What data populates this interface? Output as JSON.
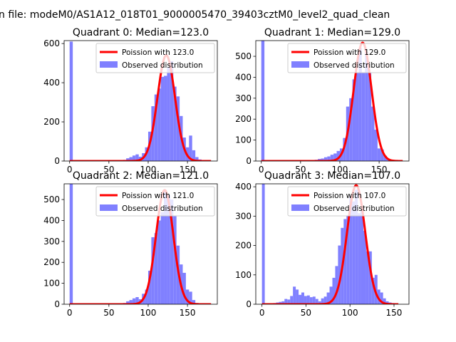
{
  "figure": {
    "suptitle": "n file: modeM0/AS1A12_018T01_9000005470_39403cztM0_level2_quad_clean"
  },
  "chart_data": [
    {
      "type": "bar",
      "title": "Quadrant 0: Median=123.0",
      "median": 123.0,
      "xlim": [
        -7,
        188
      ],
      "ylim": [
        0,
        615
      ],
      "xticks": [
        0,
        50,
        100,
        150
      ],
      "yticks": [
        0,
        200,
        400,
        600
      ],
      "legend": {
        "placement": "top-right",
        "line_label": "Poission with 123.0",
        "bar_label": "Observed distribution"
      },
      "bin_width": 4,
      "series": [
        {
          "name": "Observed distribution",
          "bins": [
            [
              0,
              4,
              610
            ],
            [
              52,
              56,
              2
            ],
            [
              56,
              60,
              2
            ],
            [
              60,
              64,
              2
            ],
            [
              64,
              68,
              4
            ],
            [
              68,
              72,
              6
            ],
            [
              72,
              76,
              14
            ],
            [
              76,
              80,
              20
            ],
            [
              80,
              84,
              28
            ],
            [
              84,
              88,
              34
            ],
            [
              88,
              92,
              22
            ],
            [
              92,
              96,
              40
            ],
            [
              96,
              100,
              70
            ],
            [
              100,
              104,
              150
            ],
            [
              104,
              108,
              280
            ],
            [
              108,
              112,
              340
            ],
            [
              112,
              116,
              370
            ],
            [
              116,
              120,
              430
            ],
            [
              120,
              124,
              435
            ],
            [
              124,
              128,
              480
            ],
            [
              128,
              132,
              510
            ],
            [
              132,
              136,
              380
            ],
            [
              136,
              140,
              330
            ],
            [
              140,
              144,
              230
            ],
            [
              144,
              148,
              120
            ],
            [
              148,
              152,
              70
            ],
            [
              152,
              156,
              130
            ],
            [
              156,
              160,
              55
            ],
            [
              160,
              164,
              20
            ],
            [
              164,
              168,
              8
            ],
            [
              168,
              172,
              4
            ],
            [
              172,
              176,
              2
            ]
          ]
        },
        {
          "name": "Poission with 123.0",
          "kind": "poisson",
          "mean": 123.0,
          "scale": 540,
          "x_range": [
            0,
            180
          ]
        }
      ]
    },
    {
      "type": "bar",
      "title": "Quadrant 1: Median=129.0",
      "median": 129.0,
      "xlim": [
        -7,
        188
      ],
      "ylim": [
        0,
        575
      ],
      "xticks": [
        0,
        50,
        100,
        150
      ],
      "yticks": [
        0,
        100,
        200,
        300,
        400,
        500
      ],
      "legend": {
        "placement": "top-right",
        "line_label": "Poission with 129.0",
        "bar_label": "Observed distribution"
      },
      "bin_width": 4,
      "series": [
        {
          "name": "Observed distribution",
          "bins": [
            [
              0,
              4,
              575
            ],
            [
              60,
              64,
              2
            ],
            [
              64,
              68,
              4
            ],
            [
              68,
              72,
              6
            ],
            [
              72,
              76,
              10
            ],
            [
              76,
              80,
              12
            ],
            [
              80,
              84,
              18
            ],
            [
              84,
              88,
              22
            ],
            [
              88,
              92,
              30
            ],
            [
              92,
              96,
              36
            ],
            [
              96,
              100,
              48
            ],
            [
              100,
              104,
              60
            ],
            [
              104,
              108,
              110
            ],
            [
              108,
              112,
              260
            ],
            [
              112,
              116,
              300
            ],
            [
              116,
              120,
              390
            ],
            [
              120,
              124,
              420
            ],
            [
              124,
              128,
              540
            ],
            [
              128,
              132,
              420
            ],
            [
              132,
              136,
              520
            ],
            [
              136,
              140,
              420
            ],
            [
              140,
              144,
              260
            ],
            [
              144,
              148,
              150
            ],
            [
              148,
              152,
              60
            ],
            [
              152,
              156,
              55
            ],
            [
              156,
              160,
              25
            ],
            [
              160,
              164,
              10
            ],
            [
              164,
              168,
              4
            ]
          ]
        },
        {
          "name": "Poission with 129.0",
          "kind": "poisson",
          "mean": 129.0,
          "scale": 565,
          "x_range": [
            0,
            180
          ]
        }
      ]
    },
    {
      "type": "bar",
      "title": "Quadrant 2: Median=121.0",
      "median": 121.0,
      "xlim": [
        -7,
        188
      ],
      "ylim": [
        0,
        575
      ],
      "xticks": [
        0,
        50,
        100,
        150
      ],
      "yticks": [
        0,
        100,
        200,
        300,
        400,
        500
      ],
      "legend": {
        "placement": "top-right",
        "line_label": "Poission with 121.0",
        "bar_label": "Observed distribution"
      },
      "bin_width": 4,
      "series": [
        {
          "name": "Observed distribution",
          "bins": [
            [
              0,
              4,
              575
            ],
            [
              52,
              56,
              2
            ],
            [
              56,
              60,
              2
            ],
            [
              60,
              64,
              2
            ],
            [
              64,
              68,
              4
            ],
            [
              68,
              72,
              6
            ],
            [
              72,
              76,
              14
            ],
            [
              76,
              80,
              20
            ],
            [
              80,
              84,
              28
            ],
            [
              84,
              88,
              34
            ],
            [
              88,
              92,
              24
            ],
            [
              92,
              96,
              50
            ],
            [
              96,
              100,
              70
            ],
            [
              100,
              104,
              160
            ],
            [
              104,
              108,
              320
            ],
            [
              108,
              112,
              340
            ],
            [
              112,
              116,
              400
            ],
            [
              116,
              120,
              440
            ],
            [
              120,
              124,
              540
            ],
            [
              124,
              128,
              520
            ],
            [
              128,
              132,
              500
            ],
            [
              132,
              136,
              420
            ],
            [
              136,
              140,
              280
            ],
            [
              140,
              144,
              190
            ],
            [
              144,
              148,
              150
            ],
            [
              148,
              152,
              70
            ],
            [
              152,
              156,
              60
            ],
            [
              156,
              160,
              20
            ],
            [
              160,
              164,
              6
            ],
            [
              164,
              168,
              2
            ]
          ]
        },
        {
          "name": "Poission with 121.0",
          "kind": "poisson",
          "mean": 121.0,
          "scale": 545,
          "x_range": [
            0,
            180
          ]
        }
      ]
    },
    {
      "type": "bar",
      "title": "Quadrant 3: Median=107.0",
      "median": 107.0,
      "xlim": [
        -7,
        167
      ],
      "ylim": [
        0,
        410
      ],
      "xticks": [
        0,
        50,
        100,
        150
      ],
      "yticks": [
        0,
        100,
        200,
        300,
        400
      ],
      "legend": {
        "placement": "top-right",
        "line_label": "Poission with 107.0",
        "bar_label": "Observed distribution"
      },
      "bin_width": 3.2,
      "series": [
        {
          "name": "Observed distribution",
          "bins": [
            [
              0,
              3.2,
              410
            ],
            [
              6.4,
              9.6,
              2
            ],
            [
              12.8,
              16,
              4
            ],
            [
              16,
              19.2,
              6
            ],
            [
              19.2,
              22.4,
              8
            ],
            [
              22.4,
              25.6,
              10
            ],
            [
              25.6,
              28.8,
              18
            ],
            [
              28.8,
              32,
              16
            ],
            [
              32,
              35.2,
              28
            ],
            [
              35.2,
              38.4,
              60
            ],
            [
              38.4,
              41.6,
              50
            ],
            [
              41.6,
              44.8,
              32
            ],
            [
              44.8,
              48,
              40
            ],
            [
              48,
              51.2,
              28
            ],
            [
              51.2,
              54.4,
              30
            ],
            [
              54.4,
              57.6,
              24
            ],
            [
              57.6,
              60.8,
              26
            ],
            [
              60.8,
              64,
              18
            ],
            [
              64,
              67.2,
              10
            ],
            [
              67.2,
              70.4,
              20
            ],
            [
              70.4,
              73.6,
              26
            ],
            [
              73.6,
              76.8,
              40
            ],
            [
              76.8,
              80,
              60
            ],
            [
              80,
              83.2,
              90
            ],
            [
              83.2,
              86.4,
              130
            ],
            [
              86.4,
              89.6,
              200
            ],
            [
              89.6,
              92.8,
              260
            ],
            [
              92.8,
              96,
              290
            ],
            [
              96,
              99.2,
              300
            ],
            [
              99.2,
              102.4,
              370
            ],
            [
              102.4,
              105.6,
              350
            ],
            [
              105.6,
              108.8,
              390
            ],
            [
              108.8,
              112,
              310
            ],
            [
              112,
              115.2,
              320
            ],
            [
              115.2,
              118.4,
              250
            ],
            [
              118.4,
              121.6,
              180
            ],
            [
              121.6,
              124.8,
              180
            ],
            [
              124.8,
              128,
              90
            ],
            [
              128,
              131.2,
              100
            ],
            [
              131.2,
              134.4,
              50
            ],
            [
              134.4,
              137.6,
              40
            ],
            [
              137.6,
              140.8,
              20
            ],
            [
              140.8,
              144,
              10
            ],
            [
              144,
              147.2,
              6
            ],
            [
              147.2,
              150.4,
              4
            ]
          ]
        },
        {
          "name": "Poission with 107.0",
          "kind": "poisson",
          "mean": 107.0,
          "scale": 405,
          "x_range": [
            0,
            155
          ]
        }
      ]
    }
  ],
  "colors": {
    "bars": "#8080ff",
    "line": "#ff0000",
    "axes": "#000000",
    "background": "#ffffff"
  }
}
